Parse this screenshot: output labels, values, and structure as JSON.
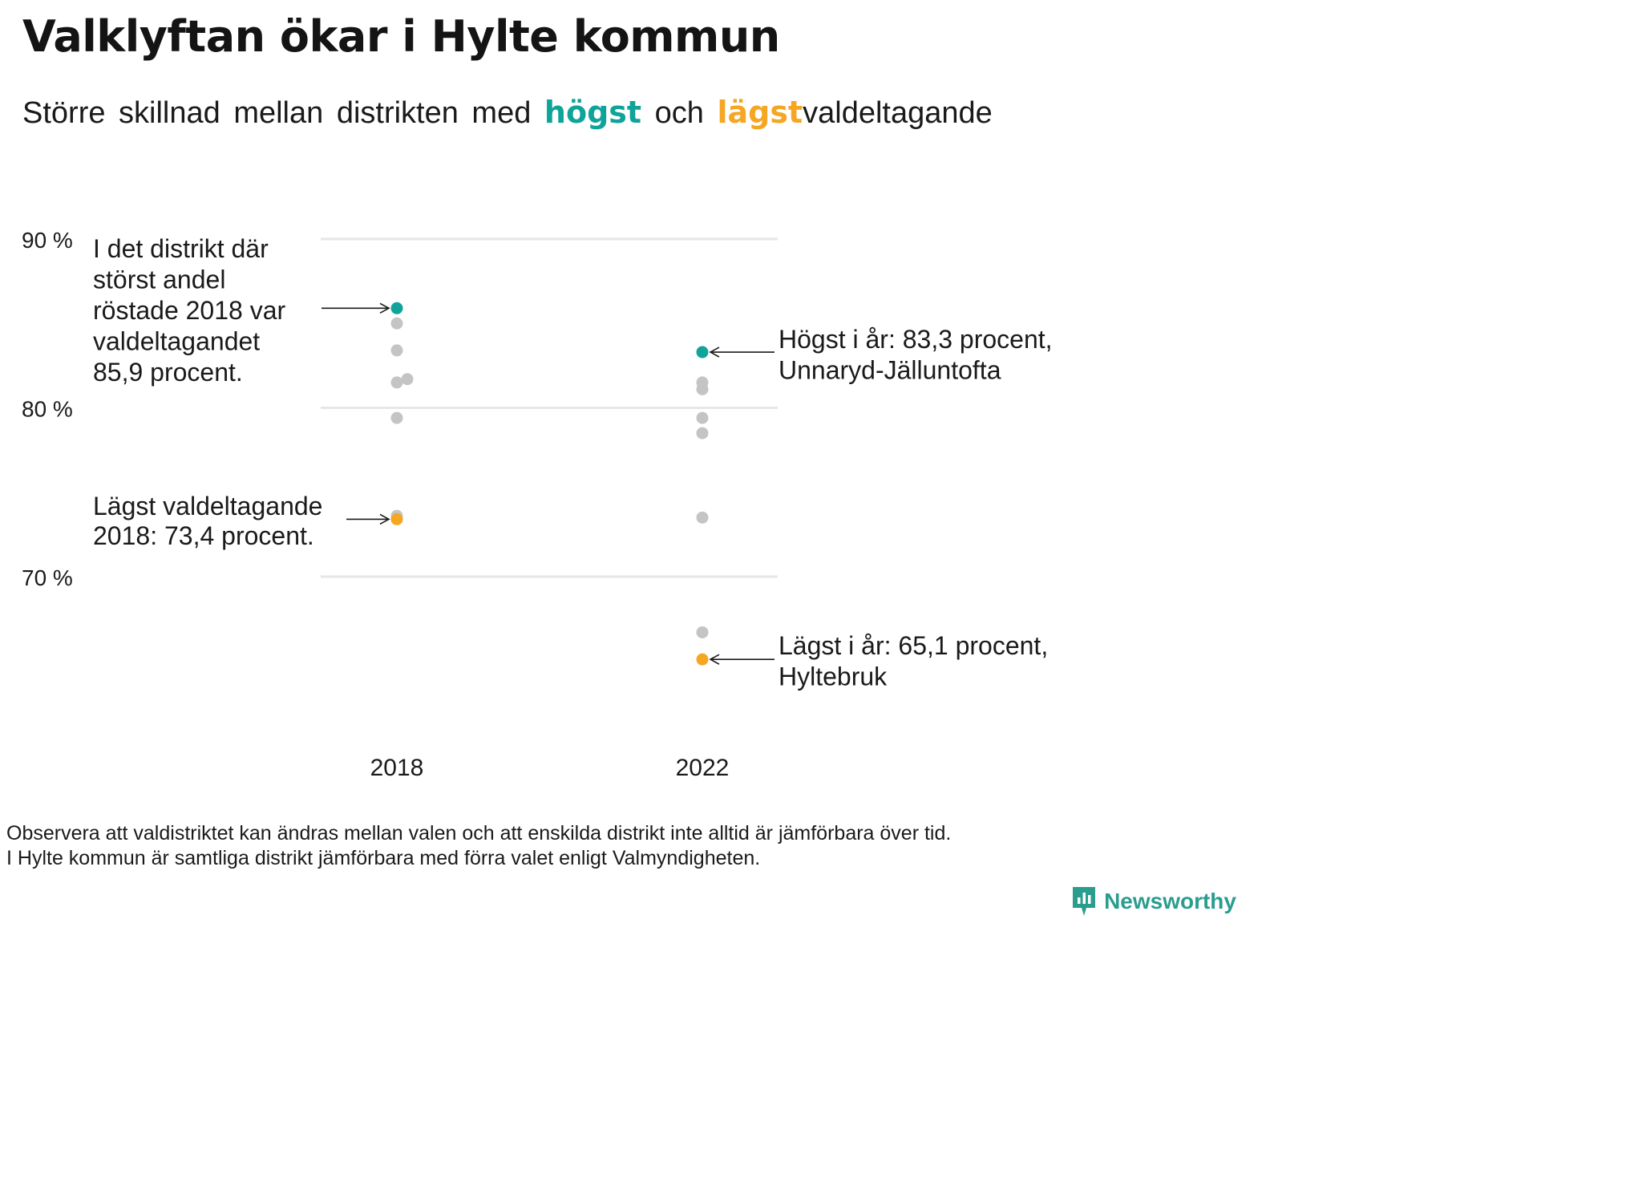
{
  "title": "Valklyftan ökar i Hylte kommun",
  "subtitle": {
    "part1": "Större skillnad mellan distrikten med",
    "highlight_high": "högst",
    "part2": "och",
    "highlight_low": "lägst",
    "part3": "valdeltagande"
  },
  "colors": {
    "high": "#0fa39a",
    "low": "#f5a623",
    "other": "#c4c4c4",
    "grid": "#e6e6e6",
    "text": "#1a1a1a",
    "brand": "#2a9d8f"
  },
  "chart_data": {
    "type": "scatter",
    "xlabel": "",
    "ylabel": "",
    "y_range": [
      60,
      90
    ],
    "y_ticks": [
      70,
      80,
      90
    ],
    "y_tick_labels": [
      "70 %",
      "80 %",
      "90 %"
    ],
    "grid": true,
    "categories": [
      "2018",
      "2022"
    ],
    "points": [
      {
        "x": "2018",
        "y": 85.9,
        "kind": "high"
      },
      {
        "x": "2018",
        "y": 85.0,
        "kind": "other"
      },
      {
        "x": "2018",
        "y": 83.4,
        "kind": "other"
      },
      {
        "x": "2018",
        "y": 81.7,
        "kind": "other",
        "jitter": 1
      },
      {
        "x": "2018",
        "y": 81.5,
        "kind": "other"
      },
      {
        "x": "2018",
        "y": 79.4,
        "kind": "other"
      },
      {
        "x": "2018",
        "y": 73.6,
        "kind": "other"
      },
      {
        "x": "2018",
        "y": 73.4,
        "kind": "low"
      },
      {
        "x": "2022",
        "y": 83.3,
        "kind": "high"
      },
      {
        "x": "2022",
        "y": 81.5,
        "kind": "other"
      },
      {
        "x": "2022",
        "y": 81.1,
        "kind": "other"
      },
      {
        "x": "2022",
        "y": 79.4,
        "kind": "other"
      },
      {
        "x": "2022",
        "y": 78.5,
        "kind": "other"
      },
      {
        "x": "2022",
        "y": 73.5,
        "kind": "other"
      },
      {
        "x": "2022",
        "y": 66.7,
        "kind": "other"
      },
      {
        "x": "2022",
        "y": 65.1,
        "kind": "low"
      }
    ],
    "annotations": [
      {
        "target": "2018-high",
        "text": [
          "I det distrikt där",
          "störst andel",
          "röstade 2018 var",
          "valdeltagandet",
          "85,9 procent."
        ]
      },
      {
        "target": "2018-low",
        "text": [
          "Lägst valdeltagande",
          "2018: 73,4 procent."
        ]
      },
      {
        "target": "2022-high",
        "text": [
          "Högst i år: 83,3 procent,",
          "Unnaryd-Jälluntofta"
        ]
      },
      {
        "target": "2022-low",
        "text": [
          "Lägst i år: 65,1 procent,",
          "Hyltebruk"
        ]
      }
    ]
  },
  "footnote": {
    "line1": "Observera att valdistriktet kan ändras mellan valen och att enskilda distrikt inte alltid är jämförbara över tid.",
    "line2": "I Hylte kommun är samtliga distrikt jämförbara med förra valet enligt Valmyndigheten."
  },
  "brand": {
    "name": "Newsworthy",
    "icon": "newsworthy-logo-icon"
  }
}
